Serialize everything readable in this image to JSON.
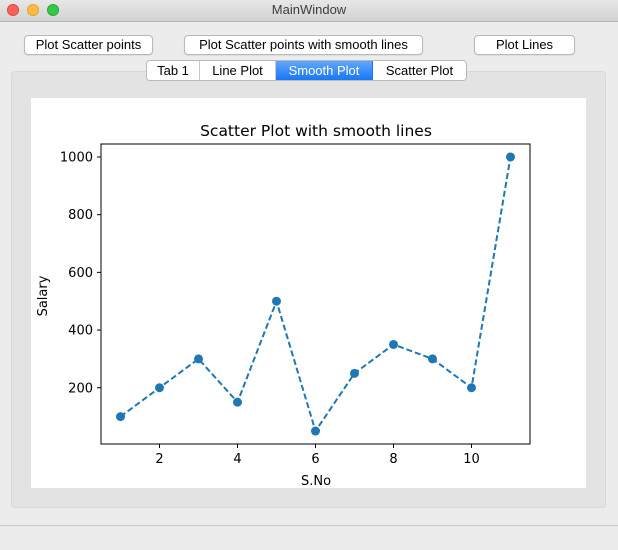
{
  "window": {
    "title": "MainWindow"
  },
  "toolbar": {
    "scatter_label": "Plot Scatter points",
    "smooth_label": "Plot Scatter points with smooth lines",
    "lines_label": "Plot Lines"
  },
  "tabs": [
    {
      "label": "Tab 1",
      "active": false
    },
    {
      "label": "Line Plot",
      "active": false
    },
    {
      "label": "Smooth Plot",
      "active": true
    },
    {
      "label": "Scatter Plot",
      "active": false
    }
  ],
  "colors": {
    "series": "#1f77b4",
    "tab_active": "#1a76f5"
  },
  "chart_data": {
    "type": "line",
    "title": "Scatter Plot with smooth lines",
    "xlabel": "S.No",
    "ylabel": "Salary",
    "x": [
      1,
      2,
      3,
      4,
      5,
      6,
      7,
      8,
      9,
      10,
      11
    ],
    "series": [
      {
        "values": [
          100,
          200,
          300,
          150,
          500,
          50,
          250,
          350,
          300,
          200,
          1000
        ]
      }
    ],
    "line_style": "dashed",
    "markers": "circle",
    "xticks": [
      2,
      4,
      6,
      8,
      10
    ],
    "yticks": [
      200,
      400,
      600,
      800,
      1000
    ],
    "xlim": [
      0.5,
      11.5
    ],
    "ylim": [
      5,
      1045
    ],
    "grid": false
  }
}
